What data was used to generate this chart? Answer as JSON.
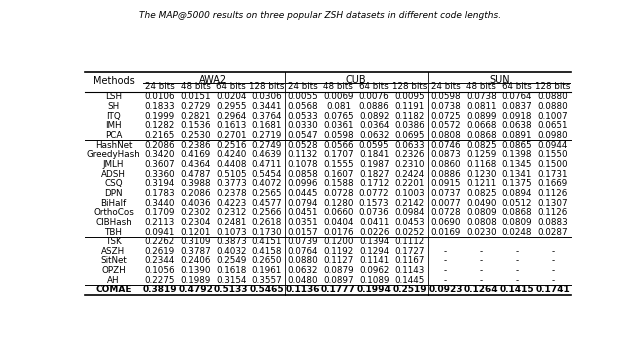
{
  "title": "The MAP@5000 results on three popular ZSH datasets in different code lengths.",
  "datasets": [
    "AWA2",
    "CUB",
    "SUN"
  ],
  "groups": [
    {
      "rows": [
        [
          "LSH",
          "0.0106",
          "0.0151",
          "0.0204",
          "0.0306",
          "0.0055",
          "0.0069",
          "0.0076",
          "0.0095",
          "0.0598",
          "0.0738",
          "0.0764",
          "0.0880"
        ],
        [
          "SH",
          "0.1833",
          "0.2729",
          "0.2955",
          "0.3441",
          "0.0568",
          "0.081",
          "0.0886",
          "0.1191",
          "0.0738",
          "0.0811",
          "0.0837",
          "0.0880"
        ],
        [
          "ITQ",
          "0.1999",
          "0.2821",
          "0.2964",
          "0.3764",
          "0.0533",
          "0.0765",
          "0.0892",
          "0.1182",
          "0.0725",
          "0.0899",
          "0.0918",
          "0.1007"
        ],
        [
          "IMH",
          "0.1282",
          "0.1536",
          "0.1613",
          "0.1681",
          "0.0330",
          "0.0361",
          "0.0364",
          "0.0386",
          "0.0572",
          "0.0668",
          "0.0638",
          "0.0651"
        ],
        [
          "PCA",
          "0.2165",
          "0.2530",
          "0.2701",
          "0.2719",
          "0.0547",
          "0.0598",
          "0.0632",
          "0.0695",
          "0.0808",
          "0.0868",
          "0.0891",
          "0.0980"
        ]
      ]
    },
    {
      "rows": [
        [
          "HashNet",
          "0.2086",
          "0.2386",
          "0.2516",
          "0.2749",
          "0.0528",
          "0.0566",
          "0.0595",
          "0.0633",
          "0.0746",
          "0.0825",
          "0.0865",
          "0.0944"
        ],
        [
          "GreedyHash",
          "0.3420",
          "0.4169",
          "0.4240",
          "0.4639",
          "0.1132",
          "0.1707",
          "0.1841",
          "0.2326",
          "0.0873",
          "0.1259",
          "0.1398",
          "0.1550"
        ],
        [
          "JMLH",
          "0.3607",
          "0.4364",
          "0.4408",
          "0.4711",
          "0.1078",
          "0.1555",
          "0.1987",
          "0.2310",
          "0.0860",
          "0.1168",
          "0.1345",
          "0.1500"
        ],
        [
          "ADSH",
          "0.3360",
          "0.4787",
          "0.5105",
          "0.5454",
          "0.0858",
          "0.1607",
          "0.1827",
          "0.2424",
          "0.0886",
          "0.1230",
          "0.1341",
          "0.1731"
        ],
        [
          "CSQ",
          "0.3194",
          "0.3988",
          "0.3773",
          "0.4072",
          "0.0996",
          "0.1588",
          "0.1712",
          "0.2201",
          "0.0915",
          "0.1211",
          "0.1375",
          "0.1669"
        ],
        [
          "DPN",
          "0.1783",
          "0.2086",
          "0.2378",
          "0.2565",
          "0.0445",
          "0.0728",
          "0.0772",
          "0.1003",
          "0.0737",
          "0.0825",
          "0.0894",
          "0.1126"
        ],
        [
          "BiHalf",
          "0.3440",
          "0.4036",
          "0.4223",
          "0.4577",
          "0.0794",
          "0.1280",
          "0.1573",
          "0.2142",
          "0.0077",
          "0.0490",
          "0.0512",
          "0.1307"
        ],
        [
          "OrthoCos",
          "0.1709",
          "0.2302",
          "0.2312",
          "0.2566",
          "0.0451",
          "0.0660",
          "0.0736",
          "0.0984",
          "0.0728",
          "0.0809",
          "0.0868",
          "0.1126"
        ],
        [
          "CIBHash",
          "0.2113",
          "0.2304",
          "0.2481",
          "0.2618",
          "0.0351",
          "0.0404",
          "0.0411",
          "0.0453",
          "0.0690",
          "0.0808",
          "0.0809",
          "0.0883"
        ],
        [
          "TBH",
          "0.0941",
          "0.1201",
          "0.1073",
          "0.1730",
          "0.0157",
          "0.0176",
          "0.0226",
          "0.0252",
          "0.0169",
          "0.0230",
          "0.0248",
          "0.0287"
        ]
      ]
    },
    {
      "rows": [
        [
          "TSK",
          "0.2262",
          "0.3109",
          "0.3873",
          "0.4151",
          "0.0739",
          "0.1200",
          "0.1394",
          "0.1112",
          "",
          "",
          "",
          ""
        ],
        [
          "ASZH",
          "0.2619",
          "0.3787",
          "0.4032",
          "0.4158",
          "0.0764",
          "0.1192",
          "0.1294",
          "0.1727",
          "-",
          "-",
          "-",
          "-"
        ],
        [
          "SitNet",
          "0.2344",
          "0.2406",
          "0.2549",
          "0.2650",
          "0.0880",
          "0.1127",
          "0.1141",
          "0.1167",
          "-",
          "-",
          "-",
          "-"
        ],
        [
          "OPZH",
          "0.1056",
          "0.1390",
          "0.1618",
          "0.1961",
          "0.0632",
          "0.0879",
          "0.0962",
          "0.1143",
          "-",
          "-",
          "-",
          "-"
        ],
        [
          "AH",
          "0.2275",
          "0.1989",
          "0.3154",
          "0.3557",
          "0.0480",
          "0.0897",
          "0.1089",
          "0.1445",
          "-",
          "-",
          "-",
          "-"
        ]
      ]
    }
  ],
  "last_row": [
    "COMAE",
    "0.3819",
    "0.4792",
    "0.5133",
    "0.5465",
    "0.1136",
    "0.1777",
    "0.1994",
    "0.2519",
    "0.0923",
    "0.1264",
    "0.1415",
    "0.1741"
  ],
  "bg_color": "#ffffff",
  "fontsize_header": 7,
  "fontsize_data": 6.3,
  "fontsize_last": 6.5,
  "fontsize_title": 6.5
}
